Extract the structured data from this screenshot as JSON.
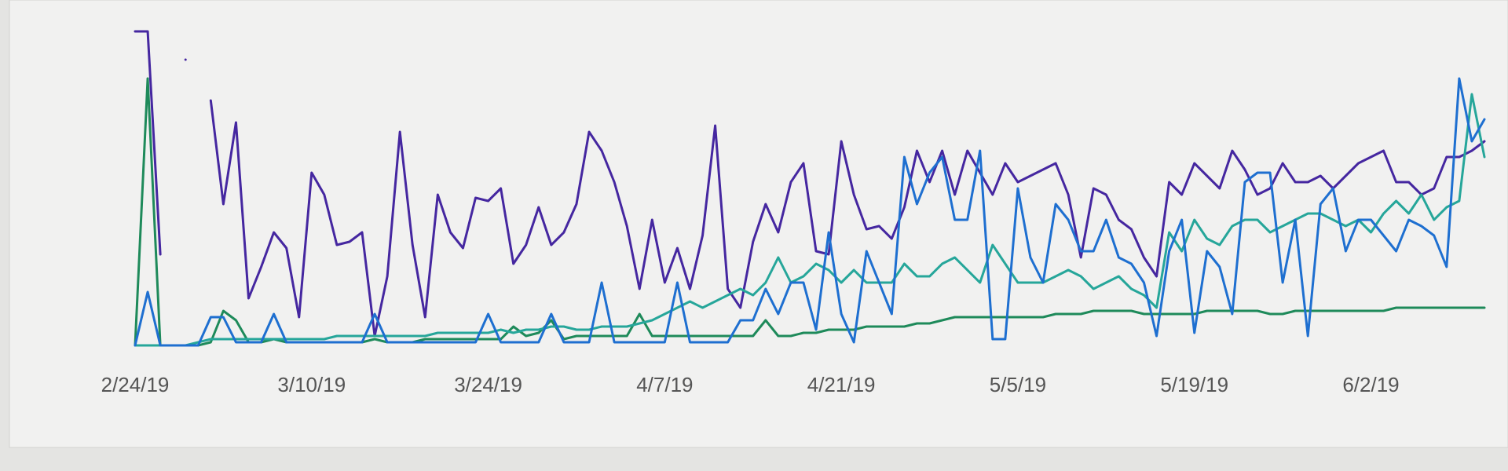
{
  "chart_data": {
    "type": "line",
    "categories": [
      "2/24/19",
      null,
      null,
      null,
      null,
      null,
      null,
      null,
      null,
      null,
      null,
      null,
      null,
      null,
      "3/10/19",
      null,
      null,
      null,
      null,
      null,
      null,
      null,
      null,
      null,
      null,
      null,
      null,
      null,
      "3/24/19",
      null,
      null,
      null,
      null,
      null,
      null,
      null,
      null,
      null,
      null,
      null,
      null,
      null,
      "4/7/19",
      null,
      null,
      null,
      null,
      null,
      null,
      null,
      null,
      null,
      null,
      null,
      null,
      null,
      "4/21/19",
      null,
      null,
      null,
      null,
      null,
      null,
      null,
      null,
      null,
      null,
      null,
      null,
      null,
      "5/5/19",
      null,
      null,
      null,
      null,
      null,
      null,
      null,
      null,
      null,
      null,
      null,
      null,
      null,
      "5/19/19",
      null,
      null,
      null,
      null,
      null,
      null,
      null,
      null,
      null,
      null,
      null,
      null,
      null,
      "6/2/19",
      null,
      null,
      null,
      null,
      null,
      null,
      null,
      null,
      null
    ],
    "ylim": [
      0,
      100
    ],
    "series": [
      {
        "color": "#4527a0",
        "values": [
          100,
          100,
          29,
          null,
          91,
          null,
          78,
          45,
          71,
          15,
          25,
          36,
          31,
          9,
          55,
          48,
          32,
          33,
          36,
          3,
          22,
          68,
          32,
          9,
          48,
          36,
          31,
          47,
          46,
          50,
          26,
          32,
          44,
          32,
          36,
          45,
          68,
          62,
          52,
          38,
          18,
          40,
          20,
          31,
          18,
          35,
          70,
          18,
          12,
          33,
          45,
          36,
          52,
          58,
          30,
          29,
          65,
          48,
          37,
          38,
          34,
          44,
          62,
          52,
          62,
          48,
          62,
          55,
          48,
          58,
          52,
          54,
          56,
          58,
          48,
          28,
          50,
          48,
          40,
          37,
          28,
          22,
          52,
          48,
          58,
          54,
          50,
          62,
          56,
          48,
          50,
          58,
          52,
          52,
          54,
          50,
          54,
          58,
          60,
          62,
          52,
          52,
          48,
          50,
          60,
          60,
          62,
          65
        ]
      },
      {
        "color": "#1e8a5a",
        "values": [
          0,
          85,
          0,
          0,
          0,
          0,
          1,
          11,
          8,
          1,
          1,
          2,
          1,
          1,
          1,
          1,
          1,
          1,
          1,
          2,
          1,
          1,
          1,
          2,
          2,
          2,
          2,
          2,
          2,
          2,
          6,
          3,
          4,
          8,
          2,
          3,
          3,
          3,
          3,
          3,
          10,
          3,
          3,
          3,
          3,
          3,
          3,
          3,
          3,
          3,
          8,
          3,
          3,
          4,
          4,
          5,
          5,
          5,
          6,
          6,
          6,
          6,
          7,
          7,
          8,
          9,
          9,
          9,
          9,
          9,
          9,
          9,
          9,
          10,
          10,
          10,
          11,
          11,
          11,
          11,
          10,
          10,
          10,
          10,
          10,
          11,
          11,
          11,
          11,
          11,
          10,
          10,
          11,
          11,
          11,
          11,
          11,
          11,
          11,
          11,
          12,
          12,
          12,
          12,
          12,
          12,
          12,
          12
        ]
      },
      {
        "color": "#26a69a",
        "values": [
          0,
          0,
          0,
          0,
          0,
          1,
          2,
          2,
          2,
          2,
          2,
          2,
          2,
          2,
          2,
          2,
          3,
          3,
          3,
          3,
          3,
          3,
          3,
          3,
          4,
          4,
          4,
          4,
          4,
          5,
          4,
          5,
          5,
          6,
          6,
          5,
          5,
          6,
          6,
          6,
          7,
          8,
          10,
          12,
          14,
          12,
          14,
          16,
          18,
          16,
          20,
          28,
          20,
          22,
          26,
          24,
          20,
          24,
          20,
          20,
          20,
          26,
          22,
          22,
          26,
          28,
          24,
          20,
          32,
          26,
          20,
          20,
          20,
          22,
          24,
          22,
          18,
          20,
          22,
          18,
          16,
          12,
          36,
          30,
          40,
          34,
          32,
          38,
          40,
          40,
          36,
          38,
          40,
          42,
          42,
          40,
          38,
          40,
          36,
          42,
          46,
          42,
          48,
          40,
          44,
          46,
          80,
          60
        ]
      },
      {
        "color": "#1e6fd0",
        "values": [
          0,
          17,
          0,
          0,
          0,
          0,
          9,
          9,
          1,
          1,
          1,
          10,
          1,
          1,
          1,
          1,
          1,
          1,
          1,
          10,
          1,
          1,
          1,
          1,
          1,
          1,
          1,
          1,
          10,
          1,
          1,
          1,
          1,
          10,
          1,
          1,
          1,
          20,
          1,
          1,
          1,
          1,
          1,
          20,
          1,
          1,
          1,
          1,
          8,
          8,
          18,
          10,
          20,
          20,
          5,
          36,
          10,
          1,
          30,
          20,
          10,
          60,
          45,
          55,
          60,
          40,
          40,
          62,
          2,
          2,
          50,
          28,
          20,
          45,
          40,
          30,
          30,
          40,
          28,
          26,
          20,
          3,
          30,
          40,
          4,
          30,
          25,
          10,
          52,
          55,
          55,
          20,
          40,
          3,
          45,
          50,
          30,
          40,
          40,
          35,
          30,
          40,
          38,
          35,
          25,
          85,
          65,
          72
        ]
      }
    ]
  }
}
